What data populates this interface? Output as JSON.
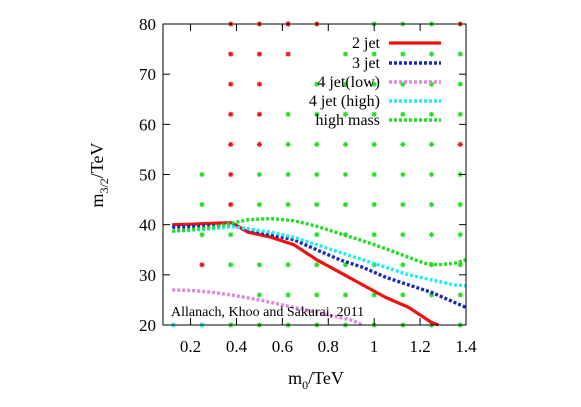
{
  "chart_data": {
    "type": "line",
    "title": "",
    "xlabel": "m0/TeV",
    "xlabel_main": "m",
    "xlabel_sub": "0",
    "xlabel_rest": "/TeV",
    "ylabel": "m3/2/TeV",
    "ylabel_main": "m",
    "ylabel_sub": "3/2",
    "ylabel_rest": "/TeV",
    "xlim": [
      0.08,
      1.4
    ],
    "ylim": [
      20,
      80
    ],
    "x_ticks": [
      0.2,
      0.4,
      0.6,
      0.8,
      1,
      1.2,
      1.4
    ],
    "x_tick_labels": [
      "0.2",
      "0.4",
      "0.6",
      "0.8",
      "1",
      "1.2",
      "1.4"
    ],
    "y_ticks": [
      20,
      30,
      40,
      50,
      60,
      70,
      80
    ],
    "y_tick_labels": [
      "20",
      "30",
      "40",
      "50",
      "60",
      "70",
      "80"
    ],
    "grid": false,
    "legend_position": "top-right",
    "annotation": "Allanach, Khoo and Sakurai, 2011",
    "series": [
      {
        "name": "2 jet",
        "color": "#ee1111",
        "style": "solid",
        "x": [
          0.12,
          0.2,
          0.3,
          0.38,
          0.45,
          0.55,
          0.65,
          0.75,
          0.85,
          0.95,
          1.05,
          1.15,
          1.25,
          1.28
        ],
        "y": [
          40,
          40.1,
          40.3,
          40.4,
          38.5,
          37.5,
          36,
          33,
          30.5,
          28,
          25.5,
          23.5,
          20.5,
          20
        ]
      },
      {
        "name": "3 jet",
        "color": "#1a2ab8",
        "style": "dashed",
        "x": [
          0.12,
          0.2,
          0.3,
          0.38,
          0.45,
          0.55,
          0.65,
          0.75,
          0.85,
          0.95,
          1.05,
          1.15,
          1.25,
          1.35,
          1.4
        ],
        "y": [
          39.5,
          39.6,
          39.8,
          39.9,
          39,
          38,
          37,
          35,
          33,
          31.5,
          29.5,
          28,
          26.5,
          24.5,
          23.5
        ]
      },
      {
        "name": "4 jet(low)",
        "color": "#dd88dd",
        "style": "dashed",
        "x": [
          0.12,
          0.2,
          0.3,
          0.4,
          0.5,
          0.6,
          0.7,
          0.8,
          0.9,
          0.95
        ],
        "y": [
          27,
          26.9,
          26.5,
          25.8,
          25,
          24,
          23,
          22,
          21,
          20
        ]
      },
      {
        "name": "4 jet (high)",
        "color": "#22eeee",
        "style": "dashed",
        "x": [
          0.12,
          0.2,
          0.3,
          0.38,
          0.45,
          0.55,
          0.65,
          0.75,
          0.85,
          0.95,
          1.05,
          1.15,
          1.25,
          1.35,
          1.4
        ],
        "y": [
          38.7,
          38.9,
          39.2,
          39.6,
          39.2,
          38.5,
          37.5,
          36,
          34.5,
          33,
          31.5,
          30,
          29,
          28,
          27.8
        ]
      },
      {
        "name": "high mass",
        "color": "#22dd22",
        "style": "dashed",
        "x": [
          0.12,
          0.2,
          0.3,
          0.38,
          0.45,
          0.55,
          0.65,
          0.75,
          0.85,
          0.95,
          1.05,
          1.15,
          1.22,
          1.28,
          1.35,
          1.4
        ],
        "y": [
          38.7,
          39,
          39.5,
          40.3,
          41,
          41.2,
          40.8,
          39.7,
          38.2,
          36.8,
          35.2,
          33.5,
          32.3,
          32,
          32.3,
          33
        ]
      }
    ],
    "points": {
      "red": {
        "color": "#ee1111",
        "x": [
          0.25,
          0.375,
          0.375,
          0.375,
          0.375,
          0.375,
          0.375,
          0.375,
          0.5,
          0.5,
          0.5,
          0.5,
          0.5,
          0.625,
          0.625,
          0.625,
          0.75,
          1.375,
          1.375
        ],
        "y": [
          32,
          44,
          50,
          56,
          62,
          68,
          74,
          80,
          56,
          62,
          68,
          74,
          80,
          74,
          80,
          80,
          80,
          56,
          80
        ]
      },
      "green": {
        "color": "#22dd22",
        "x": [
          0.25,
          0.25,
          0.25,
          0.25,
          0.375,
          0.375,
          0.375,
          0.5,
          0.5,
          0.5,
          0.5,
          0.5,
          0.625,
          0.625,
          0.625,
          0.625,
          0.625,
          0.625,
          0.625,
          0.75,
          0.75,
          0.75,
          0.75,
          0.75,
          0.75,
          0.75,
          0.75,
          0.75,
          0.875,
          0.875,
          0.875,
          0.875,
          0.875,
          0.875,
          0.875,
          0.875,
          0.875,
          0.875,
          1.0,
          1.0,
          1.0,
          1.0,
          1.0,
          1.0,
          1.0,
          1.0,
          1.0,
          1.0,
          1.0,
          1.125,
          1.125,
          1.125,
          1.125,
          1.125,
          1.125,
          1.125,
          1.125,
          1.125,
          1.125,
          1.125,
          1.25,
          1.25,
          1.25,
          1.25,
          1.25,
          1.25,
          1.25,
          1.25,
          1.25,
          1.25,
          1.25,
          1.375,
          1.375,
          1.375,
          1.375,
          1.375,
          1.375,
          1.375,
          1.375,
          1.375
        ],
        "y": [
          20,
          38,
          44,
          50,
          20,
          32,
          38,
          20,
          26,
          32,
          44,
          50,
          20,
          26,
          32,
          44,
          50,
          56,
          62,
          20,
          26,
          32,
          38,
          44,
          50,
          56,
          62,
          68,
          20,
          26,
          32,
          38,
          44,
          50,
          56,
          62,
          68,
          74,
          20,
          26,
          32,
          38,
          44,
          50,
          56,
          62,
          68,
          74,
          80,
          20,
          26,
          32,
          38,
          44,
          50,
          56,
          62,
          68,
          74,
          80,
          20,
          26,
          32,
          38,
          44,
          50,
          56,
          62,
          68,
          74,
          80,
          20,
          26,
          32,
          38,
          44,
          50,
          62,
          68,
          74
        ]
      },
      "cyan": {
        "color": "#22eeee",
        "x": [
          0.125,
          0.25
        ],
        "y": [
          20,
          20
        ]
      }
    }
  }
}
